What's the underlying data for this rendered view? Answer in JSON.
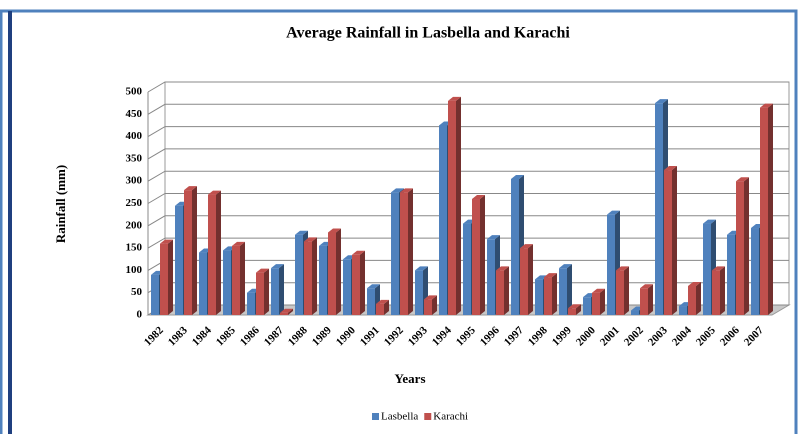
{
  "chart_data": {
    "type": "bar3d",
    "title": "Average Rainfall in Lasbella and Karachi",
    "x_label": "Years",
    "y_label": "Rainfall (mm)",
    "categories": [
      "1982",
      "1983",
      "1984",
      "1985",
      "1986",
      "1987",
      "1988",
      "1989",
      "1990",
      "1991",
      "1992",
      "1993",
      "1994",
      "1995",
      "1996",
      "1997",
      "1998",
      "1999",
      "2000",
      "2001",
      "2002",
      "2003",
      "2004",
      "2005",
      "2006",
      "2007"
    ],
    "series": [
      {
        "name": "Lasbella",
        "color": "#4f81bd",
        "values": [
          90,
          245,
          140,
          145,
          50,
          105,
          180,
          155,
          125,
          60,
          275,
          100,
          425,
          205,
          170,
          305,
          80,
          105,
          40,
          225,
          10,
          475,
          20,
          205,
          180,
          195
        ]
      },
      {
        "name": "Karachi",
        "color": "#c0504d",
        "values": [
          160,
          280,
          270,
          155,
          95,
          5,
          165,
          185,
          135,
          25,
          275,
          35,
          480,
          260,
          100,
          150,
          85,
          15,
          50,
          100,
          60,
          325,
          65,
          100,
          300,
          465
        ]
      }
    ],
    "ylim": [
      0,
      500
    ],
    "yticks": [
      0,
      50,
      100,
      150,
      200,
      250,
      300,
      350,
      400,
      450,
      500
    ],
    "grid": true,
    "legend": "bottom"
  }
}
